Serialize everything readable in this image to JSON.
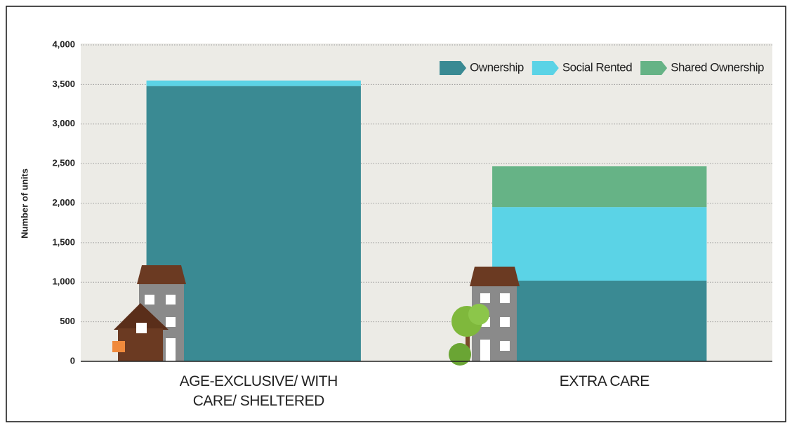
{
  "chart_data": {
    "type": "stacked_bar",
    "y_label": "Number of units",
    "categories": [
      "AGE-EXCLUSIVE/ WITH CARE/ SHELTERED",
      "EXTRA CARE"
    ],
    "series": [
      {
        "name": "Ownership",
        "color": "#3a8a93",
        "values": [
          3480,
          1020
        ]
      },
      {
        "name": "Social Rented",
        "color": "#5bd3e6",
        "values": [
          70,
          930
        ]
      },
      {
        "name": "Shared Ownership",
        "color": "#66b386",
        "values": [
          0,
          515
        ]
      }
    ],
    "ylim": [
      0,
      4000
    ],
    "yticks": [
      0,
      500,
      {
        "value": 1000,
        "label": "1,000"
      },
      {
        "value": 1500,
        "label": "1,500"
      },
      {
        "value": 2000,
        "label": "2,000"
      },
      {
        "value": 2500,
        "label": "2,500"
      },
      {
        "value": 3000,
        "label": "3,000"
      },
      {
        "value": 3500,
        "label": "3,500"
      },
      {
        "value": 4000,
        "label": "4,000"
      }
    ],
    "grid": true,
    "legend": "top-right"
  }
}
